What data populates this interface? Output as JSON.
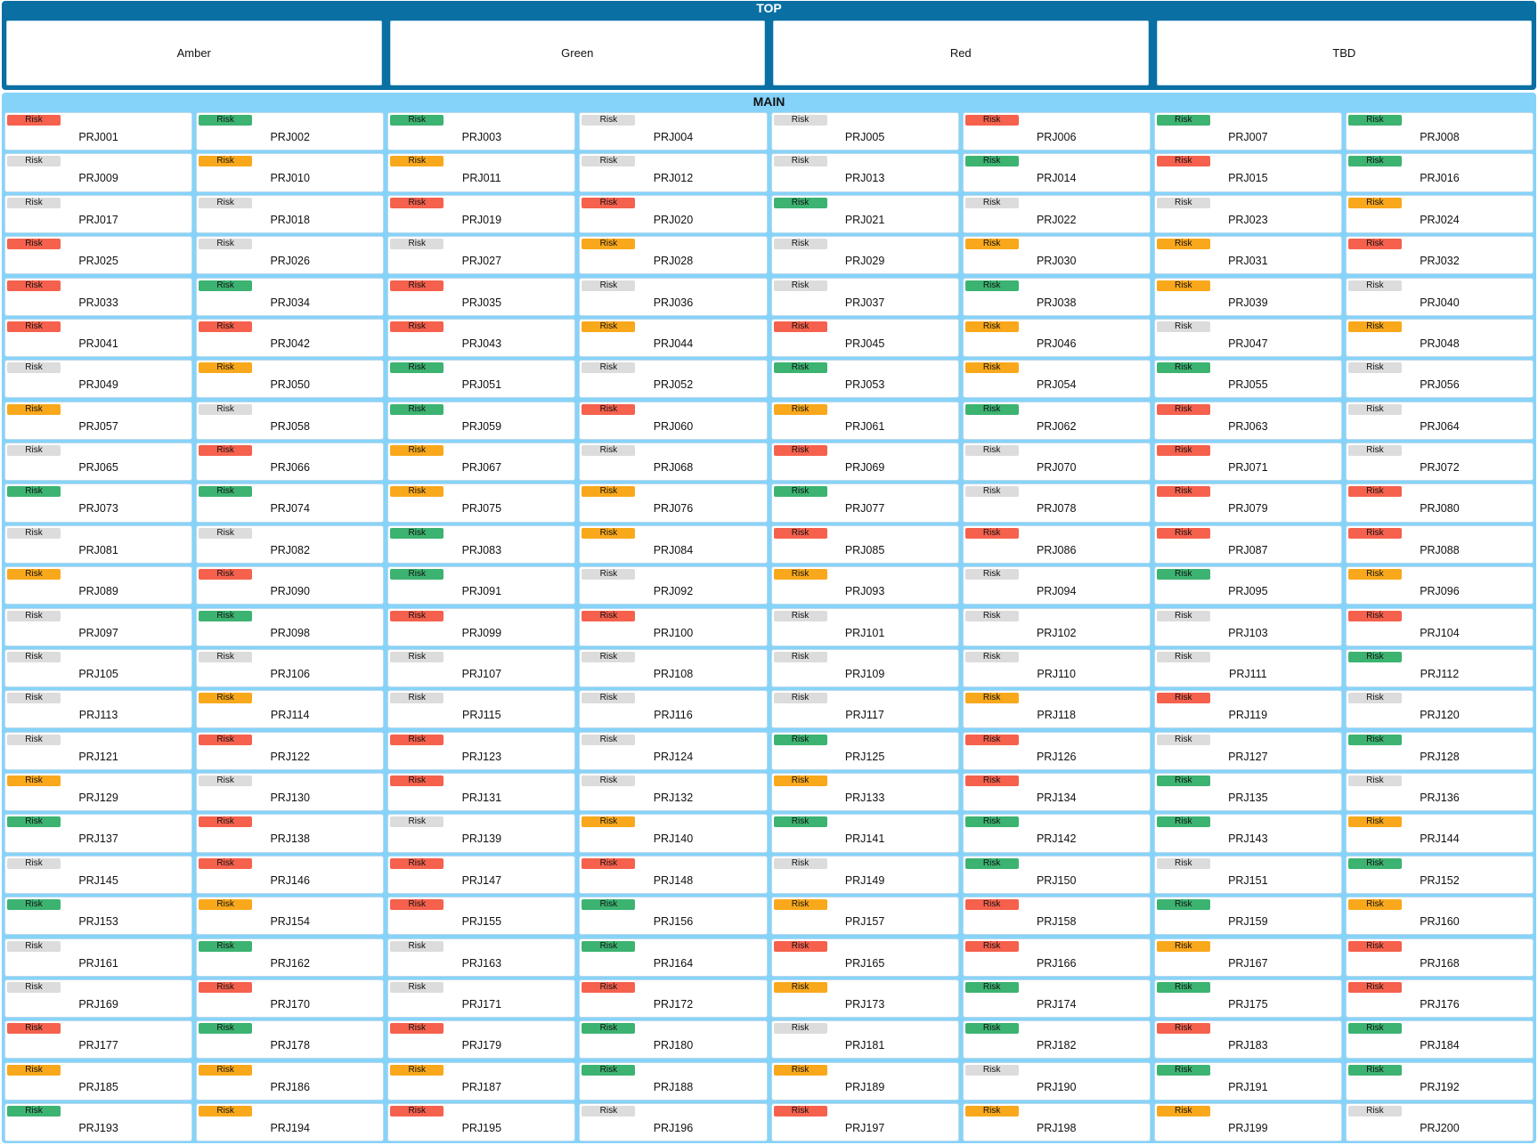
{
  "colors": {
    "red": "#f5614d",
    "amber": "#f9a81c",
    "green": "#3cb371",
    "tbd": "#dcdcdc"
  },
  "top": {
    "title": "TOP",
    "cards": [
      "Amber",
      "Green",
      "Red",
      "TBD"
    ]
  },
  "main": {
    "title": "MAIN",
    "badge_label": "Risk",
    "projects": [
      {
        "id": "PRJ001",
        "status": "red"
      },
      {
        "id": "PRJ002",
        "status": "green"
      },
      {
        "id": "PRJ003",
        "status": "green"
      },
      {
        "id": "PRJ004",
        "status": "tbd"
      },
      {
        "id": "PRJ005",
        "status": "tbd"
      },
      {
        "id": "PRJ006",
        "status": "red"
      },
      {
        "id": "PRJ007",
        "status": "green"
      },
      {
        "id": "PRJ008",
        "status": "green"
      },
      {
        "id": "PRJ009",
        "status": "tbd"
      },
      {
        "id": "PRJ010",
        "status": "amber"
      },
      {
        "id": "PRJ011",
        "status": "amber"
      },
      {
        "id": "PRJ012",
        "status": "tbd"
      },
      {
        "id": "PRJ013",
        "status": "tbd"
      },
      {
        "id": "PRJ014",
        "status": "green"
      },
      {
        "id": "PRJ015",
        "status": "red"
      },
      {
        "id": "PRJ016",
        "status": "green"
      },
      {
        "id": "PRJ017",
        "status": "tbd"
      },
      {
        "id": "PRJ018",
        "status": "tbd"
      },
      {
        "id": "PRJ019",
        "status": "red"
      },
      {
        "id": "PRJ020",
        "status": "red"
      },
      {
        "id": "PRJ021",
        "status": "green"
      },
      {
        "id": "PRJ022",
        "status": "tbd"
      },
      {
        "id": "PRJ023",
        "status": "tbd"
      },
      {
        "id": "PRJ024",
        "status": "amber"
      },
      {
        "id": "PRJ025",
        "status": "red"
      },
      {
        "id": "PRJ026",
        "status": "tbd"
      },
      {
        "id": "PRJ027",
        "status": "tbd"
      },
      {
        "id": "PRJ028",
        "status": "amber"
      },
      {
        "id": "PRJ029",
        "status": "tbd"
      },
      {
        "id": "PRJ030",
        "status": "amber"
      },
      {
        "id": "PRJ031",
        "status": "amber"
      },
      {
        "id": "PRJ032",
        "status": "red"
      },
      {
        "id": "PRJ033",
        "status": "red"
      },
      {
        "id": "PRJ034",
        "status": "green"
      },
      {
        "id": "PRJ035",
        "status": "red"
      },
      {
        "id": "PRJ036",
        "status": "tbd"
      },
      {
        "id": "PRJ037",
        "status": "tbd"
      },
      {
        "id": "PRJ038",
        "status": "green"
      },
      {
        "id": "PRJ039",
        "status": "amber"
      },
      {
        "id": "PRJ040",
        "status": "tbd"
      },
      {
        "id": "PRJ041",
        "status": "red"
      },
      {
        "id": "PRJ042",
        "status": "red"
      },
      {
        "id": "PRJ043",
        "status": "red"
      },
      {
        "id": "PRJ044",
        "status": "amber"
      },
      {
        "id": "PRJ045",
        "status": "red"
      },
      {
        "id": "PRJ046",
        "status": "amber"
      },
      {
        "id": "PRJ047",
        "status": "tbd"
      },
      {
        "id": "PRJ048",
        "status": "amber"
      },
      {
        "id": "PRJ049",
        "status": "tbd"
      },
      {
        "id": "PRJ050",
        "status": "amber"
      },
      {
        "id": "PRJ051",
        "status": "green"
      },
      {
        "id": "PRJ052",
        "status": "tbd"
      },
      {
        "id": "PRJ053",
        "status": "green"
      },
      {
        "id": "PRJ054",
        "status": "amber"
      },
      {
        "id": "PRJ055",
        "status": "green"
      },
      {
        "id": "PRJ056",
        "status": "tbd"
      },
      {
        "id": "PRJ057",
        "status": "amber"
      },
      {
        "id": "PRJ058",
        "status": "tbd"
      },
      {
        "id": "PRJ059",
        "status": "green"
      },
      {
        "id": "PRJ060",
        "status": "red"
      },
      {
        "id": "PRJ061",
        "status": "amber"
      },
      {
        "id": "PRJ062",
        "status": "green"
      },
      {
        "id": "PRJ063",
        "status": "red"
      },
      {
        "id": "PRJ064",
        "status": "tbd"
      },
      {
        "id": "PRJ065",
        "status": "tbd"
      },
      {
        "id": "PRJ066",
        "status": "red"
      },
      {
        "id": "PRJ067",
        "status": "amber"
      },
      {
        "id": "PRJ068",
        "status": "tbd"
      },
      {
        "id": "PRJ069",
        "status": "red"
      },
      {
        "id": "PRJ070",
        "status": "tbd"
      },
      {
        "id": "PRJ071",
        "status": "red"
      },
      {
        "id": "PRJ072",
        "status": "tbd"
      },
      {
        "id": "PRJ073",
        "status": "green"
      },
      {
        "id": "PRJ074",
        "status": "green"
      },
      {
        "id": "PRJ075",
        "status": "amber"
      },
      {
        "id": "PRJ076",
        "status": "amber"
      },
      {
        "id": "PRJ077",
        "status": "green"
      },
      {
        "id": "PRJ078",
        "status": "tbd"
      },
      {
        "id": "PRJ079",
        "status": "red"
      },
      {
        "id": "PRJ080",
        "status": "red"
      },
      {
        "id": "PRJ081",
        "status": "tbd"
      },
      {
        "id": "PRJ082",
        "status": "tbd"
      },
      {
        "id": "PRJ083",
        "status": "green"
      },
      {
        "id": "PRJ084",
        "status": "amber"
      },
      {
        "id": "PRJ085",
        "status": "red"
      },
      {
        "id": "PRJ086",
        "status": "red"
      },
      {
        "id": "PRJ087",
        "status": "red"
      },
      {
        "id": "PRJ088",
        "status": "red"
      },
      {
        "id": "PRJ089",
        "status": "amber"
      },
      {
        "id": "PRJ090",
        "status": "red"
      },
      {
        "id": "PRJ091",
        "status": "green"
      },
      {
        "id": "PRJ092",
        "status": "tbd"
      },
      {
        "id": "PRJ093",
        "status": "amber"
      },
      {
        "id": "PRJ094",
        "status": "tbd"
      },
      {
        "id": "PRJ095",
        "status": "green"
      },
      {
        "id": "PRJ096",
        "status": "amber"
      },
      {
        "id": "PRJ097",
        "status": "tbd"
      },
      {
        "id": "PRJ098",
        "status": "green"
      },
      {
        "id": "PRJ099",
        "status": "red"
      },
      {
        "id": "PRJ100",
        "status": "red"
      },
      {
        "id": "PRJ101",
        "status": "tbd"
      },
      {
        "id": "PRJ102",
        "status": "tbd"
      },
      {
        "id": "PRJ103",
        "status": "tbd"
      },
      {
        "id": "PRJ104",
        "status": "red"
      },
      {
        "id": "PRJ105",
        "status": "tbd"
      },
      {
        "id": "PRJ106",
        "status": "tbd"
      },
      {
        "id": "PRJ107",
        "status": "tbd"
      },
      {
        "id": "PRJ108",
        "status": "tbd"
      },
      {
        "id": "PRJ109",
        "status": "tbd"
      },
      {
        "id": "PRJ110",
        "status": "tbd"
      },
      {
        "id": "PRJ111",
        "status": "tbd"
      },
      {
        "id": "PRJ112",
        "status": "green"
      },
      {
        "id": "PRJ113",
        "status": "tbd"
      },
      {
        "id": "PRJ114",
        "status": "amber"
      },
      {
        "id": "PRJ115",
        "status": "tbd"
      },
      {
        "id": "PRJ116",
        "status": "tbd"
      },
      {
        "id": "PRJ117",
        "status": "tbd"
      },
      {
        "id": "PRJ118",
        "status": "amber"
      },
      {
        "id": "PRJ119",
        "status": "red"
      },
      {
        "id": "PRJ120",
        "status": "tbd"
      },
      {
        "id": "PRJ121",
        "status": "tbd"
      },
      {
        "id": "PRJ122",
        "status": "red"
      },
      {
        "id": "PRJ123",
        "status": "red"
      },
      {
        "id": "PRJ124",
        "status": "tbd"
      },
      {
        "id": "PRJ125",
        "status": "green"
      },
      {
        "id": "PRJ126",
        "status": "red"
      },
      {
        "id": "PRJ127",
        "status": "tbd"
      },
      {
        "id": "PRJ128",
        "status": "green"
      },
      {
        "id": "PRJ129",
        "status": "amber"
      },
      {
        "id": "PRJ130",
        "status": "tbd"
      },
      {
        "id": "PRJ131",
        "status": "red"
      },
      {
        "id": "PRJ132",
        "status": "tbd"
      },
      {
        "id": "PRJ133",
        "status": "amber"
      },
      {
        "id": "PRJ134",
        "status": "red"
      },
      {
        "id": "PRJ135",
        "status": "green"
      },
      {
        "id": "PRJ136",
        "status": "tbd"
      },
      {
        "id": "PRJ137",
        "status": "green"
      },
      {
        "id": "PRJ138",
        "status": "red"
      },
      {
        "id": "PRJ139",
        "status": "tbd"
      },
      {
        "id": "PRJ140",
        "status": "amber"
      },
      {
        "id": "PRJ141",
        "status": "green"
      },
      {
        "id": "PRJ142",
        "status": "green"
      },
      {
        "id": "PRJ143",
        "status": "green"
      },
      {
        "id": "PRJ144",
        "status": "amber"
      },
      {
        "id": "PRJ145",
        "status": "tbd"
      },
      {
        "id": "PRJ146",
        "status": "red"
      },
      {
        "id": "PRJ147",
        "status": "red"
      },
      {
        "id": "PRJ148",
        "status": "red"
      },
      {
        "id": "PRJ149",
        "status": "tbd"
      },
      {
        "id": "PRJ150",
        "status": "green"
      },
      {
        "id": "PRJ151",
        "status": "tbd"
      },
      {
        "id": "PRJ152",
        "status": "green"
      },
      {
        "id": "PRJ153",
        "status": "green"
      },
      {
        "id": "PRJ154",
        "status": "amber"
      },
      {
        "id": "PRJ155",
        "status": "red"
      },
      {
        "id": "PRJ156",
        "status": "green"
      },
      {
        "id": "PRJ157",
        "status": "amber"
      },
      {
        "id": "PRJ158",
        "status": "red"
      },
      {
        "id": "PRJ159",
        "status": "green"
      },
      {
        "id": "PRJ160",
        "status": "amber"
      },
      {
        "id": "PRJ161",
        "status": "tbd"
      },
      {
        "id": "PRJ162",
        "status": "green"
      },
      {
        "id": "PRJ163",
        "status": "tbd"
      },
      {
        "id": "PRJ164",
        "status": "green"
      },
      {
        "id": "PRJ165",
        "status": "red"
      },
      {
        "id": "PRJ166",
        "status": "red"
      },
      {
        "id": "PRJ167",
        "status": "amber"
      },
      {
        "id": "PRJ168",
        "status": "red"
      },
      {
        "id": "PRJ169",
        "status": "tbd"
      },
      {
        "id": "PRJ170",
        "status": "red"
      },
      {
        "id": "PRJ171",
        "status": "tbd"
      },
      {
        "id": "PRJ172",
        "status": "red"
      },
      {
        "id": "PRJ173",
        "status": "amber"
      },
      {
        "id": "PRJ174",
        "status": "green"
      },
      {
        "id": "PRJ175",
        "status": "green"
      },
      {
        "id": "PRJ176",
        "status": "red"
      },
      {
        "id": "PRJ177",
        "status": "red"
      },
      {
        "id": "PRJ178",
        "status": "green"
      },
      {
        "id": "PRJ179",
        "status": "red"
      },
      {
        "id": "PRJ180",
        "status": "green"
      },
      {
        "id": "PRJ181",
        "status": "tbd"
      },
      {
        "id": "PRJ182",
        "status": "green"
      },
      {
        "id": "PRJ183",
        "status": "red"
      },
      {
        "id": "PRJ184",
        "status": "green"
      },
      {
        "id": "PRJ185",
        "status": "amber"
      },
      {
        "id": "PRJ186",
        "status": "amber"
      },
      {
        "id": "PRJ187",
        "status": "amber"
      },
      {
        "id": "PRJ188",
        "status": "green"
      },
      {
        "id": "PRJ189",
        "status": "amber"
      },
      {
        "id": "PRJ190",
        "status": "tbd"
      },
      {
        "id": "PRJ191",
        "status": "green"
      },
      {
        "id": "PRJ192",
        "status": "green"
      },
      {
        "id": "PRJ193",
        "status": "green"
      },
      {
        "id": "PRJ194",
        "status": "amber"
      },
      {
        "id": "PRJ195",
        "status": "red"
      },
      {
        "id": "PRJ196",
        "status": "tbd"
      },
      {
        "id": "PRJ197",
        "status": "red"
      },
      {
        "id": "PRJ198",
        "status": "amber"
      },
      {
        "id": "PRJ199",
        "status": "amber"
      },
      {
        "id": "PRJ200",
        "status": "tbd"
      }
    ]
  }
}
